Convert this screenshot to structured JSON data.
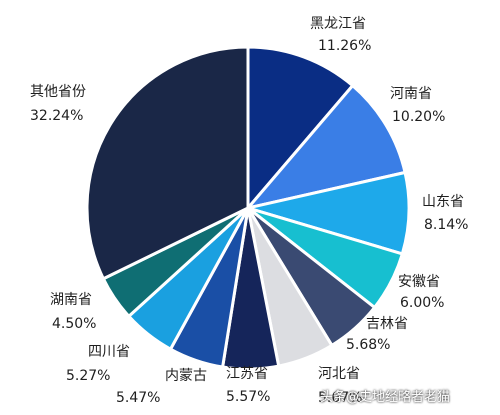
{
  "chart_data": {
    "type": "pie",
    "start": "12 o'clock, clockwise",
    "slices": [
      {
        "name": "黑龙江省",
        "value": 11.26,
        "label": "11.26%",
        "color": "#0a2d84"
      },
      {
        "name": "河南省",
        "value": 10.2,
        "label": "10.20%",
        "color": "#3a7ee6"
      },
      {
        "name": "山东省",
        "value": 8.14,
        "label": "8.14%",
        "color": "#1ea9ea"
      },
      {
        "name": "安徽省",
        "value": 6.0,
        "label": "6.00%",
        "color": "#17bfd0"
      },
      {
        "name": "吉林省",
        "value": 5.68,
        "label": "5.68%",
        "color": "#3a4a72"
      },
      {
        "name": "河北省",
        "value": 5.67,
        "label": "5.67%",
        "color": "#dcdde1"
      },
      {
        "name": "江苏省",
        "value": 5.57,
        "label": "5.57%",
        "color": "#15255a"
      },
      {
        "name": "内蒙古",
        "value": 5.47,
        "label": "5.47%",
        "color": "#1a4fa6"
      },
      {
        "name": "四川省",
        "value": 5.27,
        "label": "5.27%",
        "color": "#1aa0e0"
      },
      {
        "name": "湖南省",
        "value": 4.5,
        "label": "4.50%",
        "color": "#0f6e73"
      },
      {
        "name": "其他省份",
        "value": 32.24,
        "label": "32.24%",
        "color": "#1a2747"
      }
    ]
  },
  "watermark": "头条@史地经略者老猫"
}
